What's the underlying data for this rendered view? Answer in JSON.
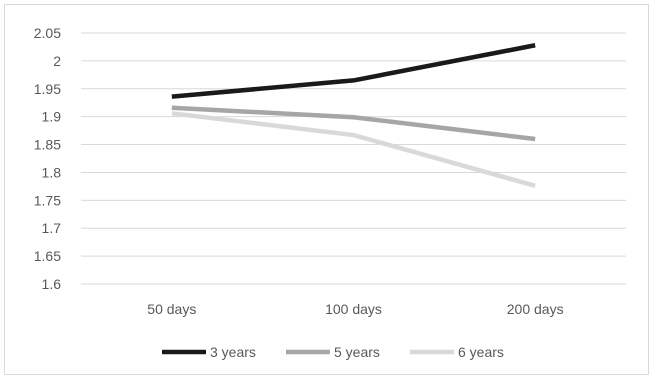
{
  "chart_data": {
    "type": "line",
    "title": "",
    "xlabel": "",
    "ylabel": "",
    "categories": [
      "50 days",
      "100 days",
      "200 days"
    ],
    "ylim": [
      1.6,
      2.05
    ],
    "yticks": [
      "1.6",
      "1.65",
      "1.7",
      "1.75",
      "1.8",
      "1.85",
      "1.9",
      "1.95",
      "2",
      "2.05"
    ],
    "grid": true,
    "legend_position": "bottom",
    "series": [
      {
        "name": "3 years",
        "color": "#1a1a1a",
        "values": [
          1.936,
          1.965,
          2.028
        ]
      },
      {
        "name": "5 years",
        "color": "#a6a6a6",
        "values": [
          1.916,
          1.899,
          1.86
        ]
      },
      {
        "name": "6 years",
        "color": "#d9d9d9",
        "values": [
          1.906,
          1.867,
          1.776
        ]
      }
    ]
  }
}
